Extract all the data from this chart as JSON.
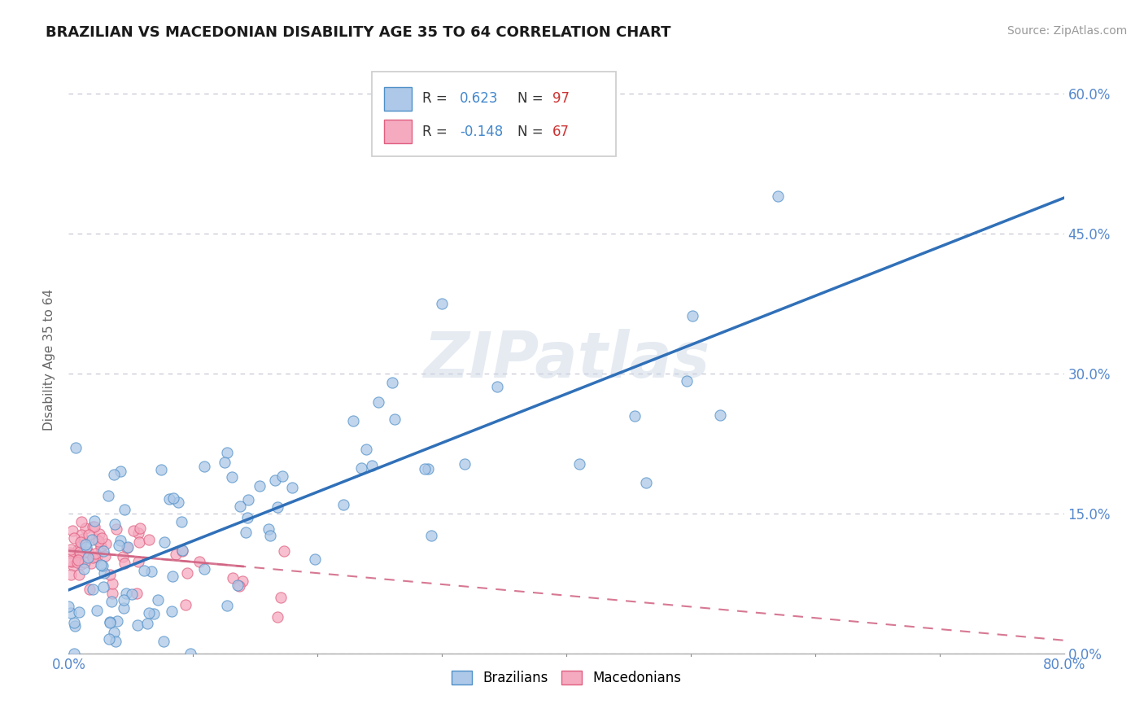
{
  "title": "BRAZILIAN VS MACEDONIAN DISABILITY AGE 35 TO 64 CORRELATION CHART",
  "source_text": "Source: ZipAtlas.com",
  "ylabel": "Disability Age 35 to 64",
  "yticks": [
    "0.0%",
    "15.0%",
    "30.0%",
    "45.0%",
    "60.0%"
  ],
  "ytick_vals": [
    0.0,
    0.15,
    0.3,
    0.45,
    0.6
  ],
  "xtick_labels": [
    "0.0%",
    "",
    "",
    "",
    "",
    "",
    "",
    "",
    "80.0%"
  ],
  "xtick_vals": [
    0.0,
    0.1,
    0.2,
    0.3,
    0.4,
    0.5,
    0.6,
    0.7,
    0.8
  ],
  "xrange": [
    0.0,
    0.8
  ],
  "yrange": [
    0.0,
    0.63
  ],
  "watermark": "ZIPatlas",
  "brazil_fill_color": "#adc8e8",
  "brazil_edge_color": "#5090c8",
  "macedonia_fill_color": "#f5aac0",
  "macedonia_edge_color": "#e06080",
  "brazil_line_color": "#3070b8",
  "macedonia_line_color": "#d06080",
  "background_color": "#ffffff",
  "grid_color": "#c0c0d0",
  "brazil_r": 0.623,
  "brazil_n": 97,
  "brazil_slope": 0.525,
  "brazil_intercept": 0.068,
  "macedonia_r": -0.148,
  "macedonia_n": 67,
  "macedonia_slope": -0.12,
  "macedonia_intercept": 0.11,
  "legend_r1_val": "0.623",
  "legend_n1_val": "97",
  "legend_r2_val": "-0.148",
  "legend_n2_val": "67",
  "r_color": "#4488cc",
  "n_color": "#cc3333",
  "tick_color": "#5588cc"
}
